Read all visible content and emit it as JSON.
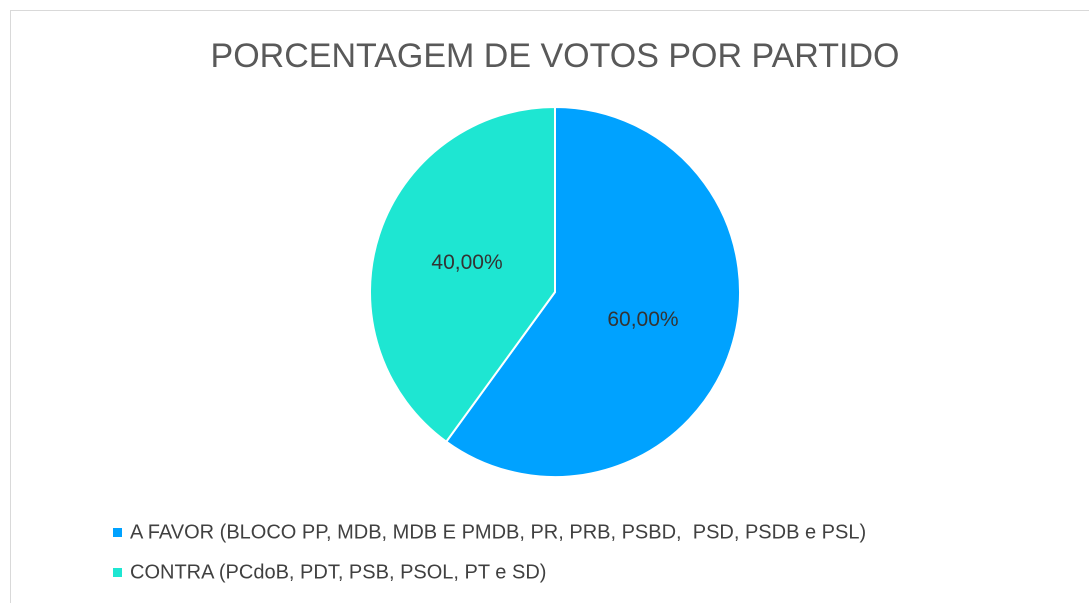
{
  "chart_data": {
    "type": "pie",
    "title": "PORCENTAGEM DE VOTOS POR PARTIDO",
    "categories": [
      "A FAVOR (BLOCO PP, MDB, MDB E PMDB, PR, PRB, PSBD,  PSD, PSDB e PSL)",
      "CONTRA (PCdoB, PDT, PSB, PSOL, PT e SD)"
    ],
    "values": [
      60,
      40
    ],
    "value_labels": [
      "60,00%",
      "40,00%"
    ],
    "colors": [
      "#00a2ff",
      "#1ee6d2"
    ],
    "legend": "bottom"
  }
}
